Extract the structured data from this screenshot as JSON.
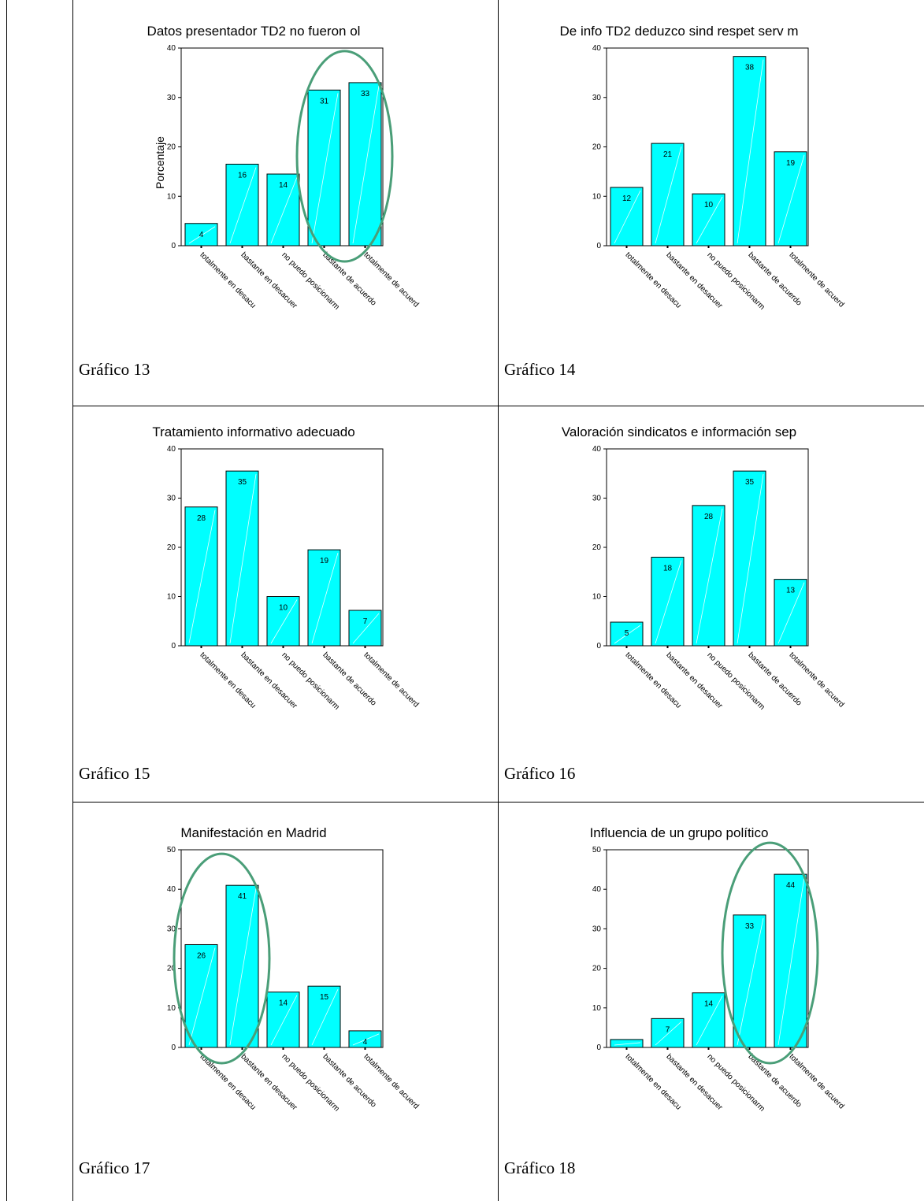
{
  "styles": {
    "bar_color": "#00FFFF",
    "bar_stroke": "#000000",
    "highlight_color": "#4A9E78"
  },
  "charts": [
    {
      "caption": "Gráfico 13",
      "chart_data": {
        "type": "bar",
        "title": "Datos presentador TD2 no fueron ol",
        "ylabel": "Porcentaje",
        "ylim": [
          0,
          40
        ],
        "yticks": [
          0,
          10,
          20,
          30,
          40
        ],
        "categories": [
          "totalmente en desacu",
          "bastante en desacuer",
          "no puedo posicionarm",
          "bastante de acuerdo",
          "totalmente de acuerd"
        ],
        "values": [
          4.5,
          16.5,
          14.5,
          31.5,
          33
        ],
        "bar_labels": [
          "4",
          "16",
          "14",
          "31",
          "33"
        ],
        "highlight": [
          3,
          4
        ]
      }
    },
    {
      "caption": "Gráfico 14",
      "chart_data": {
        "type": "bar",
        "title": "De info TD2 deduzco sind respet serv m",
        "ylabel": "",
        "ylim": [
          0,
          40
        ],
        "yticks": [
          0,
          10,
          20,
          30,
          40
        ],
        "categories": [
          "totalmente en desacu",
          "bastante en desacuer",
          "no puedo posicionarm",
          "bastante de acuerdo",
          "totalmente de acuerd"
        ],
        "values": [
          11.8,
          20.7,
          10.5,
          38.3,
          19
        ],
        "bar_labels": [
          "12",
          "21",
          "10",
          "38",
          "19"
        ],
        "highlight": []
      }
    },
    {
      "caption": "Gráfico 15",
      "chart_data": {
        "type": "bar",
        "title": "Tratamiento informativo adecuado",
        "ylabel": "",
        "ylim": [
          0,
          40
        ],
        "yticks": [
          0,
          10,
          20,
          30,
          40
        ],
        "categories": [
          "totalmente en desacu",
          "bastante en desacuer",
          "no puedo posicionarm",
          "bastante de acuerdo",
          "totalmente de acuerd"
        ],
        "values": [
          28.2,
          35.5,
          10,
          19.5,
          7.2
        ],
        "bar_labels": [
          "28",
          "35",
          "10",
          "19",
          "7"
        ],
        "highlight": []
      }
    },
    {
      "caption": "Gráfico 16",
      "chart_data": {
        "type": "bar",
        "title": "Valoración sindicatos e información sep",
        "ylabel": "",
        "ylim": [
          0,
          40
        ],
        "yticks": [
          0,
          10,
          20,
          30,
          40
        ],
        "categories": [
          "totalmente en desacu",
          "bastante en desacuer",
          "no puedo posicionarm",
          "bastante de acuerdo",
          "totalmente de acuerd"
        ],
        "values": [
          4.8,
          18,
          28.5,
          35.5,
          13.5
        ],
        "bar_labels": [
          "5",
          "18",
          "28",
          "35",
          "13"
        ],
        "highlight": []
      }
    },
    {
      "caption": "Gráfico 17",
      "chart_data": {
        "type": "bar",
        "title": "Manifestación en Madrid",
        "ylabel": "",
        "ylim": [
          0,
          50
        ],
        "yticks": [
          0,
          10,
          20,
          30,
          40,
          50
        ],
        "categories": [
          "totalmente en desacu",
          "bastante en desacuer",
          "no puedo posicionarm",
          "bastante de acuerdo",
          "totalmente de acuerd"
        ],
        "values": [
          26,
          41,
          14,
          15.5,
          4.2
        ],
        "bar_labels": [
          "26",
          "41",
          "14",
          "15",
          "4"
        ],
        "highlight": [
          0,
          1
        ]
      }
    },
    {
      "caption": "Gráfico 18",
      "chart_data": {
        "type": "bar",
        "title": "Influencia de un grupo político",
        "ylabel": "",
        "ylim": [
          0,
          50
        ],
        "yticks": [
          0,
          10,
          20,
          30,
          40,
          50
        ],
        "categories": [
          "totalmente en desacu",
          "bastante en desacuer",
          "no puedo posicionarm",
          "bastante de acuerdo",
          "totalmente de acuerd"
        ],
        "values": [
          2,
          7.3,
          13.8,
          33.5,
          43.8
        ],
        "bar_labels": [
          "",
          "7",
          "14",
          "33",
          "44"
        ],
        "highlight": [
          3,
          4
        ]
      }
    }
  ]
}
